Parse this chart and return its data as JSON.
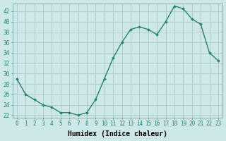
{
  "x": [
    0,
    1,
    2,
    3,
    4,
    5,
    6,
    7,
    8,
    9,
    10,
    11,
    12,
    13,
    14,
    15,
    16,
    17,
    18,
    19,
    20,
    21,
    22,
    23
  ],
  "y": [
    29,
    26,
    25,
    24,
    23.5,
    22.5,
    22.5,
    22,
    22.5,
    25,
    29,
    33,
    36,
    38.5,
    39,
    38.5,
    37.5,
    40,
    43,
    42.5,
    40.5,
    39.5,
    34,
    32.5
  ],
  "line_color": "#2e7d6e",
  "marker": "D",
  "marker_size": 1.8,
  "bg_color": "#cde8e8",
  "grid_color": "#b0cccc",
  "xlabel": "Humidex (Indice chaleur)",
  "ylim": [
    21.5,
    43.5
  ],
  "xlim": [
    -0.5,
    23.5
  ],
  "yticks": [
    22,
    24,
    26,
    28,
    30,
    32,
    34,
    36,
    38,
    40,
    42
  ],
  "xtick_labels": [
    "0",
    "1",
    "2",
    "3",
    "4",
    "5",
    "6",
    "7",
    "8",
    "9",
    "10",
    "11",
    "12",
    "13",
    "14",
    "15",
    "16",
    "17",
    "18",
    "19",
    "20",
    "21",
    "22",
    "23"
  ],
  "tick_fontsize": 5.5,
  "xlabel_fontsize": 7.0,
  "linewidth": 1.0
}
